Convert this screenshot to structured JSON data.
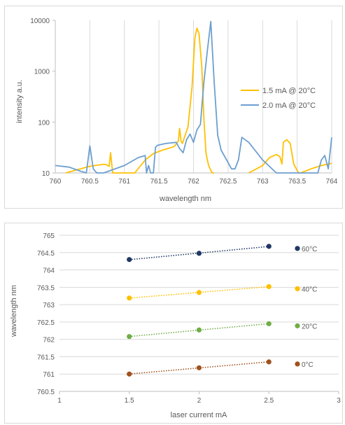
{
  "chart_data": [
    {
      "type": "line",
      "title": "",
      "xlabel": "wavelength nm",
      "ylabel": "intensity a.u.",
      "y_scale": "log",
      "xlim": [
        760,
        764
      ],
      "ylim": [
        10,
        10000
      ],
      "x_ticks": [
        "760",
        "760.5",
        "761",
        "761.5",
        "762",
        "762.5",
        "763",
        "763.5",
        "764"
      ],
      "y_ticks": [
        "10",
        "100",
        "1000",
        "10000"
      ],
      "grid": "vertical",
      "legend_position": "right",
      "series": [
        {
          "name": "1.5 mA @ 20°C",
          "color": "#ffc000",
          "x": [
            760.15,
            760.5,
            760.7,
            760.74,
            760.78,
            760.8,
            760.83,
            761.15,
            761.3,
            761.42,
            761.55,
            761.72,
            761.78,
            761.8,
            761.82,
            761.84,
            761.92,
            761.98,
            762.02,
            762.05,
            762.08,
            762.12,
            762.15,
            762.18,
            762.2,
            762.22,
            762.24,
            762.27,
            762.3
          ],
          "y": [
            10,
            13.5,
            14.8,
            14.5,
            13.5,
            25,
            10,
            10,
            18,
            24,
            28,
            33,
            42,
            75,
            42,
            38,
            80,
            500,
            4500,
            7000,
            5500,
            1200,
            120,
            25,
            18,
            14,
            12,
            10,
            10
          ]
        },
        {
          "name": "1.5 mA @ 20°C",
          "color": "#ffc000",
          "x": [
            762.8,
            763.0,
            763.1,
            763.2,
            763.25,
            763.28,
            763.3,
            763.35,
            763.4,
            763.45,
            763.52,
            763.55,
            763.7,
            763.85,
            764.0
          ],
          "y": [
            10,
            14,
            20,
            23,
            21,
            15,
            40,
            45,
            38,
            15,
            10,
            10,
            12,
            14,
            15.5
          ]
        },
        {
          "name": "2.0 mA @ 20°C",
          "color": "#6d9fd0",
          "x": [
            760.0,
            760.2,
            760.35,
            760.45,
            760.5,
            760.55,
            760.6,
            760.7,
            761.0,
            761.2,
            761.3,
            761.32,
            761.35,
            761.38,
            761.42,
            761.45,
            761.48,
            761.6,
            761.75,
            761.8,
            761.85,
            761.9,
            761.95,
            762.0,
            762.05,
            762.1,
            762.15,
            762.2,
            762.25,
            762.3,
            762.35,
            762.4,
            762.48,
            762.55,
            762.6,
            762.65,
            762.7,
            762.8,
            763.0,
            763.2,
            763.5,
            763.75,
            763.8,
            763.85,
            763.9,
            763.95,
            764.0
          ],
          "y": [
            14,
            13,
            11,
            10,
            34,
            12,
            10,
            10,
            14,
            20,
            22,
            10,
            14,
            10,
            10,
            32,
            35,
            38,
            40,
            30,
            25,
            45,
            58,
            40,
            70,
            90,
            600,
            2500,
            9500,
            600,
            55,
            28,
            18,
            12,
            12,
            18,
            50,
            40,
            18,
            10,
            10,
            10,
            10,
            18,
            22,
            12,
            50
          ]
        }
      ]
    },
    {
      "type": "scatter",
      "title": "",
      "xlabel": "laser current mA",
      "ylabel": "wavelength nm",
      "xlim": [
        1,
        3
      ],
      "ylim": [
        760.5,
        765
      ],
      "x_ticks": [
        "1",
        "1.5",
        "2",
        "2.5",
        "3"
      ],
      "y_ticks": [
        "760.5",
        "761",
        "761.5",
        "762",
        "762.5",
        "763",
        "763.5",
        "764",
        "764.5",
        "765"
      ],
      "grid": "horizontal",
      "legend_position": "right",
      "trendlines": "dotted linear",
      "series": [
        {
          "name": "0°C",
          "color": "#a0511e",
          "x": [
            1.5,
            2,
            2.5
          ],
          "y": [
            761.0,
            761.18,
            761.35
          ]
        },
        {
          "name": "20°C",
          "color": "#70ad47",
          "x": [
            1.5,
            2,
            2.5
          ],
          "y": [
            762.08,
            762.27,
            762.45
          ]
        },
        {
          "name": "40°C",
          "color": "#ffc000",
          "x": [
            1.5,
            2,
            2.5
          ],
          "y": [
            763.19,
            763.35,
            763.52
          ]
        },
        {
          "name": "60°C",
          "color": "#203864",
          "x": [
            1.5,
            2,
            2.5
          ],
          "y": [
            764.3,
            764.48,
            764.68
          ]
        }
      ]
    }
  ]
}
